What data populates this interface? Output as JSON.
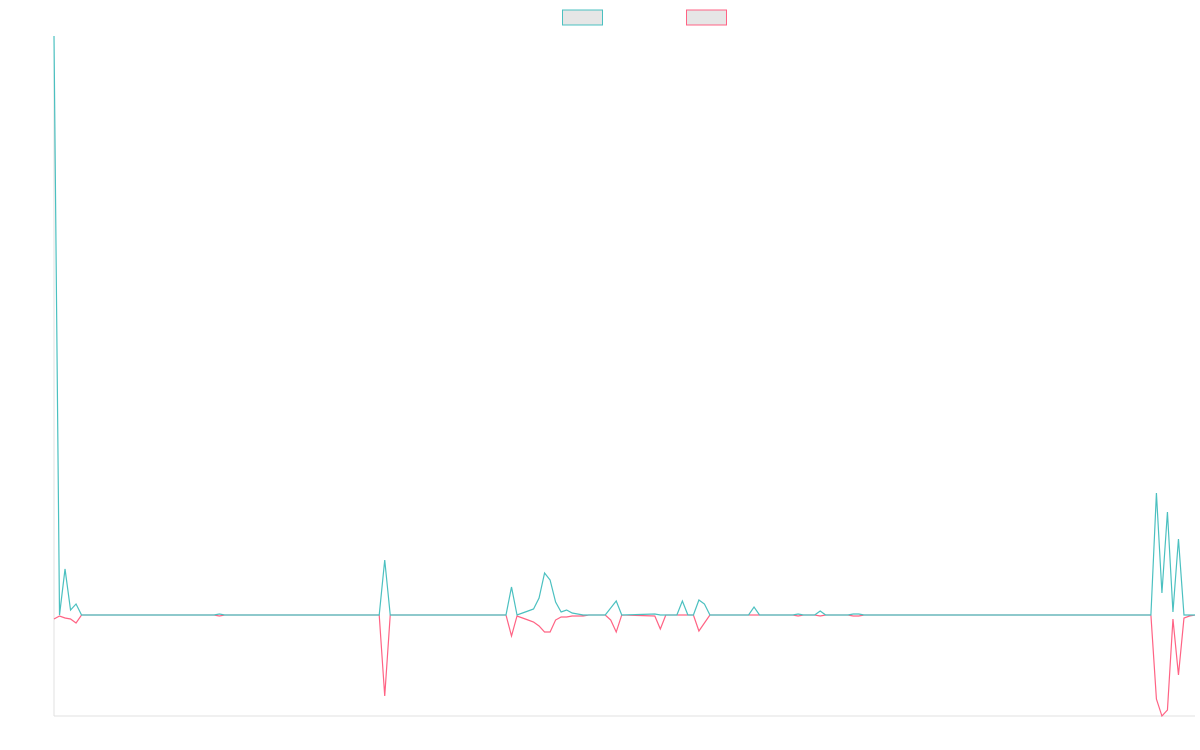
{
  "chart_data": {
    "type": "line",
    "x": [
      0,
      1,
      2,
      3,
      4,
      5,
      29,
      30,
      31,
      59,
      60,
      61,
      82,
      83,
      84,
      85,
      86,
      87,
      88,
      89,
      90,
      91,
      92,
      93,
      94,
      95,
      96,
      97,
      100,
      101,
      102,
      103,
      109,
      110,
      111,
      113,
      114,
      115,
      116,
      117,
      118,
      119,
      126,
      127,
      128,
      134,
      135,
      136,
      138,
      139,
      140,
      144,
      145,
      146,
      147,
      199,
      200,
      201,
      202,
      203,
      204,
      205,
      206,
      207
    ],
    "series": [
      {
        "color": "#4bc0c0",
        "values": [
          579,
          0,
          46,
          5,
          11,
          0,
          0,
          1,
          0,
          0,
          55,
          0,
          0,
          28,
          0,
          2,
          4,
          6,
          17,
          42,
          35,
          13,
          3,
          5,
          2,
          1,
          0,
          0,
          0,
          7,
          14,
          0,
          1,
          0,
          0,
          0,
          14,
          0,
          0,
          15,
          11,
          0,
          0,
          8,
          0,
          0,
          1,
          0,
          0,
          4,
          0,
          0,
          1,
          1,
          0,
          0,
          122,
          22,
          103,
          3,
          76,
          0,
          0,
          0
        ]
      },
      {
        "color": "#ff6384",
        "values": [
          -4,
          -1,
          -3,
          -4,
          -8,
          0,
          0,
          -1,
          0,
          0,
          -81,
          0,
          0,
          -21,
          -1,
          -3,
          -5,
          -7,
          -11,
          -17,
          -17,
          -5,
          -2,
          -2,
          -1,
          -1,
          -1,
          0,
          0,
          -5,
          -17,
          0,
          -1,
          -14,
          0,
          0,
          0,
          0,
          0,
          -16,
          -8,
          0,
          0,
          0,
          0,
          0,
          -1,
          0,
          0,
          -1,
          0,
          0,
          -1,
          -1,
          0,
          0,
          -84,
          -101,
          -95,
          -4,
          -60,
          -3,
          -1,
          0
        ]
      }
    ],
    "xlim": [
      0,
      207
    ],
    "ylim": [
      -101,
      579
    ],
    "legend": "top"
  }
}
